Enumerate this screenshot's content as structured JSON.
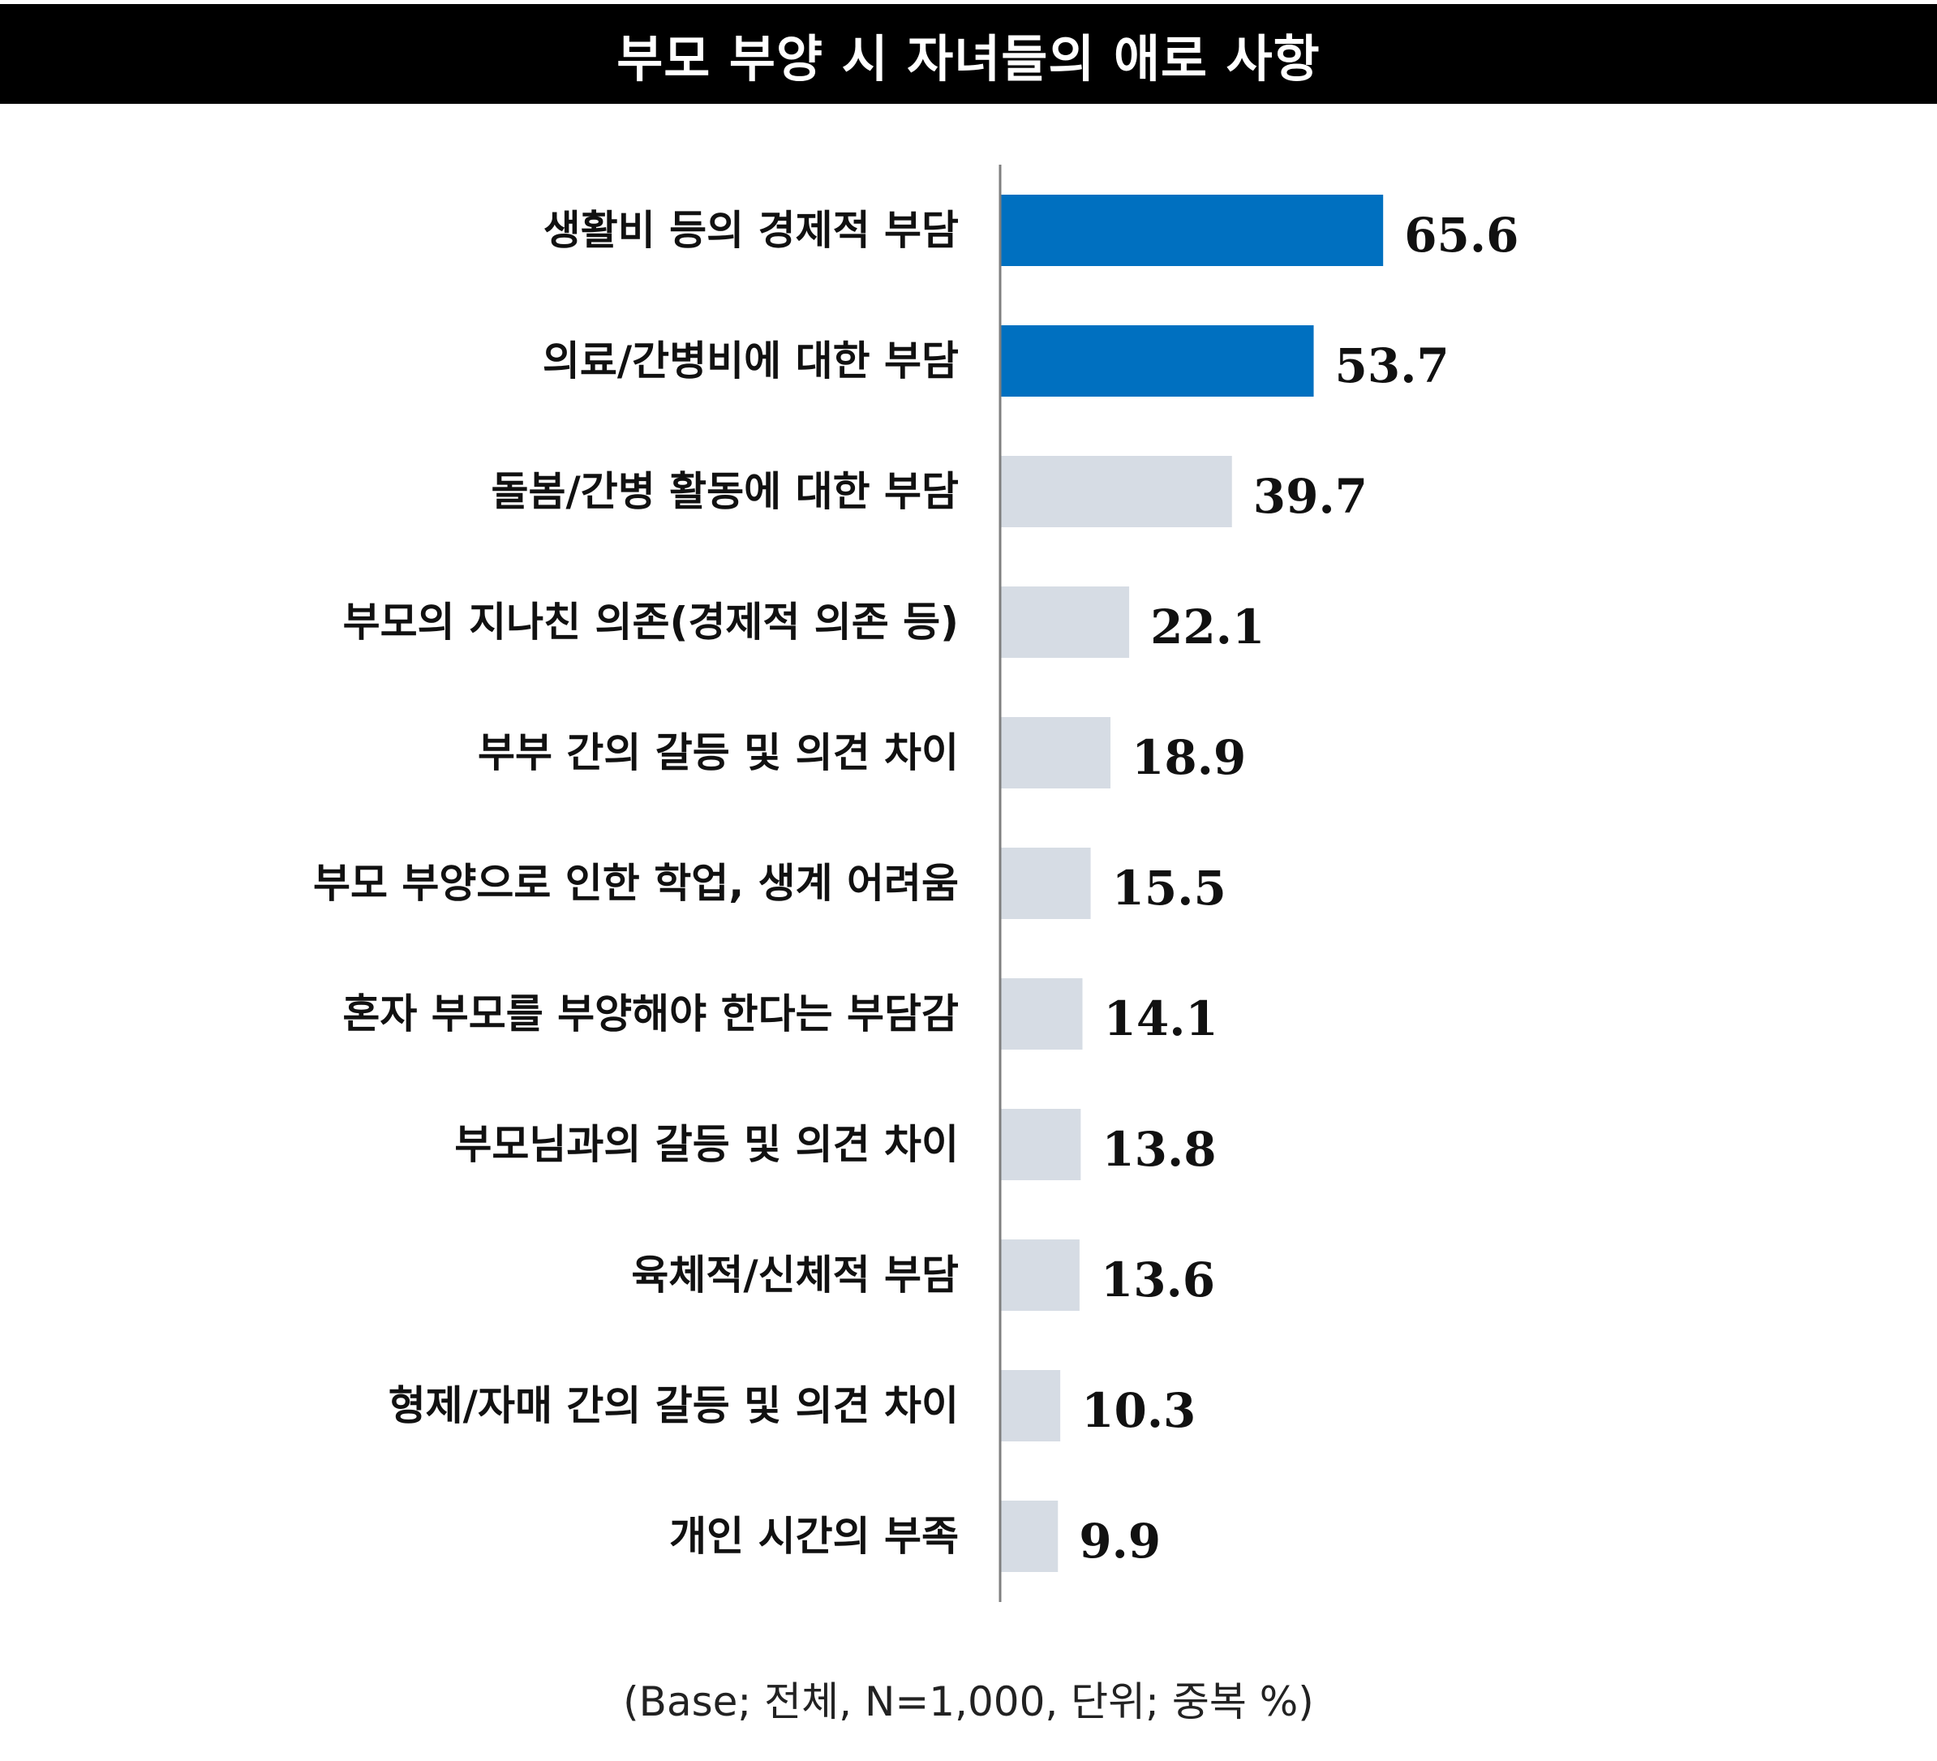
{
  "title": "부모 부양 시 자녀들의 애로 사항",
  "note": "(Base; 전체, N=1,000, 단위; 중복 %)",
  "colors": {
    "highlight": "#0070C0",
    "default": "#D6DCE4",
    "title_bg": "#000000",
    "title_text": "#FFFFFF",
    "axis": "#7F7F7F"
  },
  "chart_data": {
    "type": "bar",
    "orientation": "horizontal",
    "categories": [
      "생활비 등의 경제적 부담",
      "의료/간병비에 대한 부담",
      "돌봄/간병 활동에 대한 부담",
      "부모의 지나친 의존(경제적 의존 등)",
      "부부 간의 갈등 및 의견 차이",
      "부모 부양으로 인한 학업, 생계 어려움",
      "혼자 부모를 부양해야 한다는 부담감",
      "부모님과의 갈등 및 의견 차이",
      "육체적/신체적 부담",
      "형제/자매 간의 갈등 및 의견 차이",
      "개인 시간의 부족"
    ],
    "values": [
      65.6,
      53.7,
      39.7,
      22.1,
      18.9,
      15.5,
      14.1,
      13.8,
      13.6,
      10.3,
      9.9
    ],
    "value_labels": [
      "65.6",
      "53.7",
      "39.7",
      "22.1",
      "18.9",
      "15.5",
      "14.1",
      "13.8",
      "13.6",
      "10.3",
      "9.9"
    ],
    "highlighted": [
      true,
      true,
      false,
      false,
      false,
      false,
      false,
      false,
      false,
      false,
      false
    ],
    "grid": false,
    "legend": "none"
  }
}
